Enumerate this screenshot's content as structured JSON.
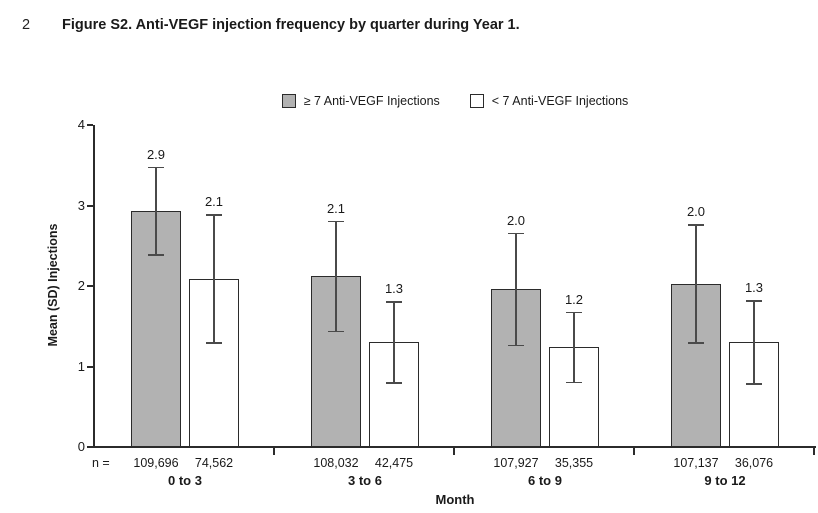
{
  "figure": {
    "line_number": "2",
    "title": "Figure S2. Anti-VEGF injection frequency by quarter during Year 1."
  },
  "legend": {
    "items": [
      {
        "label": "≥ 7 Anti-VEGF Injections",
        "swatch_color": "#b2b2b2"
      },
      {
        "label": "< 7 Anti-VEGF Injections",
        "swatch_color": "#ffffff"
      }
    ]
  },
  "colors": {
    "bar_gray": "#b2b2b2",
    "bar_white": "#ffffff",
    "axis": "#2b2b2b",
    "error_bar": "#4a4a4a",
    "text": "#1a1a1a"
  },
  "chart_data": {
    "type": "bar",
    "categories": [
      "0 to 3",
      "3 to 6",
      "6 to 9",
      "9 to 12"
    ],
    "series": [
      {
        "name": "≥ 7 Anti-VEGF Injections",
        "color": "#b2b2b2",
        "value_labels": [
          "2.9",
          "2.1",
          "2.0",
          "2.0"
        ],
        "means": [
          2.93,
          2.12,
          1.96,
          2.03
        ],
        "sd": [
          0.55,
          0.69,
          0.7,
          0.74
        ],
        "n": [
          "109,696",
          "108,032",
          "107,927",
          "107,137"
        ]
      },
      {
        "name": "< 7 Anti-VEGF Injections",
        "color": "#ffffff",
        "value_labels": [
          "2.1",
          "1.3",
          "1.2",
          "1.3"
        ],
        "means": [
          2.09,
          1.3,
          1.24,
          1.3
        ],
        "sd": [
          0.8,
          0.51,
          0.44,
          0.52
        ],
        "n": [
          "74,562",
          "42,475",
          "35,355",
          "36,076"
        ]
      }
    ],
    "xlabel": "Month",
    "ylabel": "Mean (SD) Injections",
    "n_prefix": "n =",
    "ylim": [
      0,
      4
    ],
    "yticks": [
      0,
      1,
      2,
      3,
      4
    ],
    "grid": false,
    "legend_position": "top",
    "error_bars": true
  }
}
